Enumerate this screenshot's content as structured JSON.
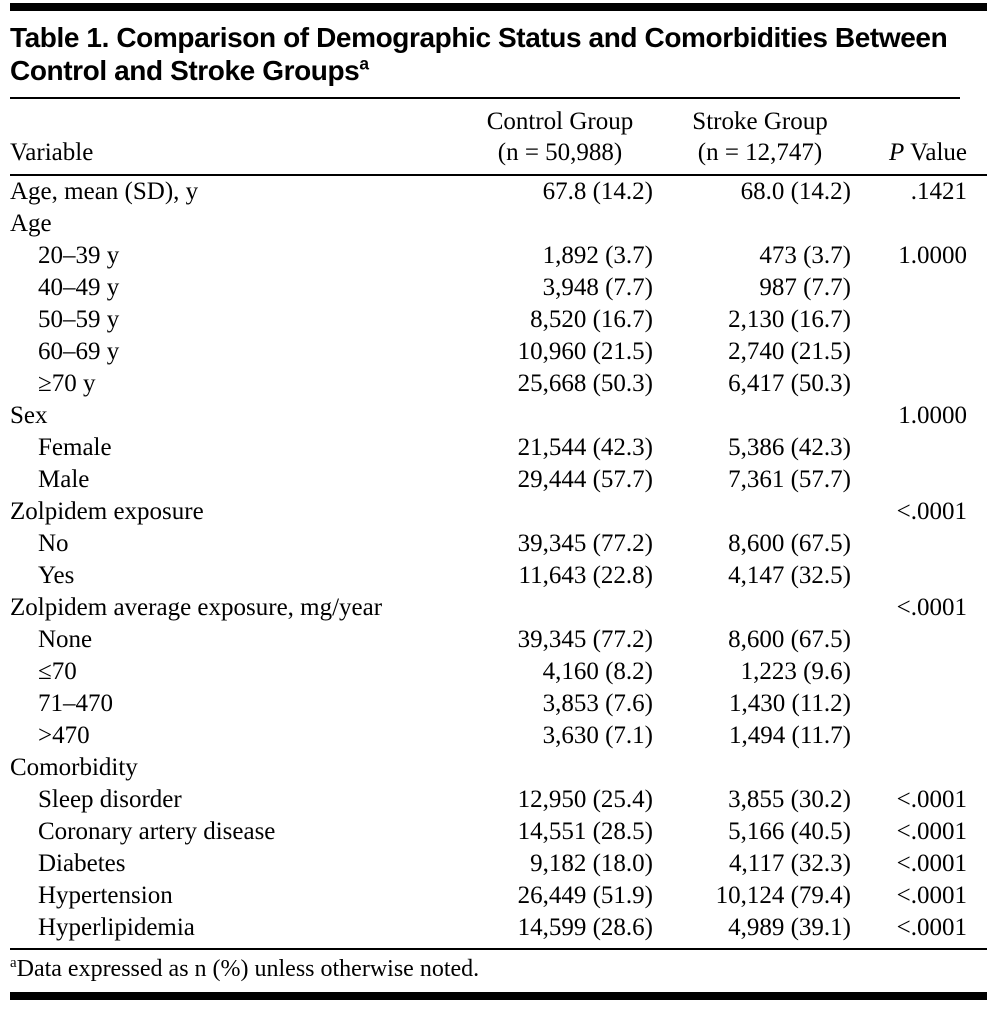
{
  "table": {
    "title": "Table 1. Comparison of Demographic Status and Comorbidities Between Control and Stroke Groups",
    "title_superscript": "a",
    "columns": {
      "variable": "Variable",
      "control_line1": "Control Group",
      "control_line2": "(n = 50,988)",
      "stroke_line1": "Stroke Group",
      "stroke_line2": "(n = 12,747)",
      "p_italic": "P",
      "p_rest": " Value"
    },
    "rows": [
      {
        "label": "Age, mean (SD), y",
        "indent": false,
        "control": "67.8 (14.2)",
        "stroke": "68.0 (14.2)",
        "p": ".1421"
      },
      {
        "label": "Age",
        "indent": false,
        "control": "",
        "stroke": "",
        "p": ""
      },
      {
        "label": "20–39 y",
        "indent": true,
        "control": "1,892 (3.7)",
        "stroke": "473 (3.7)",
        "p": "1.0000"
      },
      {
        "label": "40–49 y",
        "indent": true,
        "control": "3,948 (7.7)",
        "stroke": "987 (7.7)",
        "p": ""
      },
      {
        "label": "50–59 y",
        "indent": true,
        "control": "8,520 (16.7)",
        "stroke": "2,130 (16.7)",
        "p": ""
      },
      {
        "label": "60–69 y",
        "indent": true,
        "control": "10,960 (21.5)",
        "stroke": "2,740 (21.5)",
        "p": ""
      },
      {
        "label": "≥70 y",
        "indent": true,
        "control": "25,668 (50.3)",
        "stroke": "6,417 (50.3)",
        "p": ""
      },
      {
        "label": "Sex",
        "indent": false,
        "control": "",
        "stroke": "",
        "p": "1.0000"
      },
      {
        "label": "Female",
        "indent": true,
        "control": "21,544 (42.3)",
        "stroke": "5,386 (42.3)",
        "p": ""
      },
      {
        "label": "Male",
        "indent": true,
        "control": "29,444 (57.7)",
        "stroke": "7,361 (57.7)",
        "p": ""
      },
      {
        "label": "Zolpidem exposure",
        "indent": false,
        "control": "",
        "stroke": "",
        "p": "<.0001"
      },
      {
        "label": "No",
        "indent": true,
        "control": "39,345 (77.2)",
        "stroke": "8,600 (67.5)",
        "p": ""
      },
      {
        "label": "Yes",
        "indent": true,
        "control": "11,643 (22.8)",
        "stroke": "4,147 (32.5)",
        "p": ""
      },
      {
        "label": "Zolpidem average exposure, mg/year",
        "indent": false,
        "control": "",
        "stroke": "",
        "p": "<.0001"
      },
      {
        "label": "None",
        "indent": true,
        "control": "39,345 (77.2)",
        "stroke": "8,600 (67.5)",
        "p": ""
      },
      {
        "label": "≤70",
        "indent": true,
        "control": "4,160 (8.2)",
        "stroke": "1,223 (9.6)",
        "p": ""
      },
      {
        "label": "71–470",
        "indent": true,
        "control": "3,853 (7.6)",
        "stroke": "1,430 (11.2)",
        "p": ""
      },
      {
        "label": ">470",
        "indent": true,
        "control": "3,630 (7.1)",
        "stroke": "1,494 (11.7)",
        "p": ""
      },
      {
        "label": "Comorbidity",
        "indent": false,
        "control": "",
        "stroke": "",
        "p": ""
      },
      {
        "label": "Sleep disorder",
        "indent": true,
        "control": "12,950 (25.4)",
        "stroke": "3,855 (30.2)",
        "p": "<.0001"
      },
      {
        "label": "Coronary artery disease",
        "indent": true,
        "control": "14,551 (28.5)",
        "stroke": "5,166 (40.5)",
        "p": "<.0001"
      },
      {
        "label": "Diabetes",
        "indent": true,
        "control": "9,182 (18.0)",
        "stroke": "4,117 (32.3)",
        "p": "<.0001"
      },
      {
        "label": "Hypertension",
        "indent": true,
        "control": "26,449 (51.9)",
        "stroke": "10,124 (79.4)",
        "p": "<.0001"
      },
      {
        "label": "Hyperlipidemia",
        "indent": true,
        "control": "14,599 (28.6)",
        "stroke": "4,989 (39.1)",
        "p": "<.0001"
      }
    ],
    "footnote_superscript": "a",
    "footnote": "Data expressed as n (%) unless otherwise noted."
  }
}
